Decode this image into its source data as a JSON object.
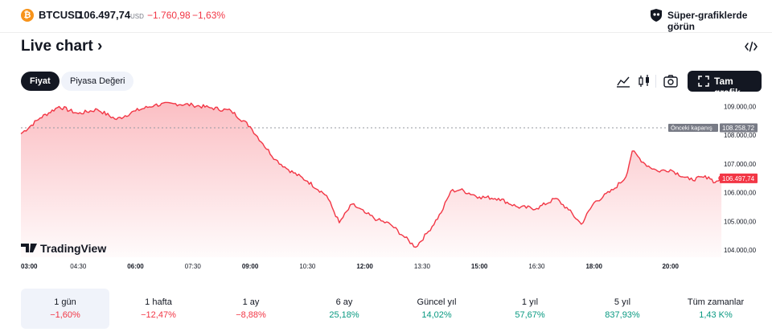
{
  "header": {
    "symbol": "BTCUSD",
    "price": "106.497,74",
    "currency": "USD",
    "change": "−1.760,98",
    "change_percent": "−1,63%",
    "super_link": "Süper-grafiklerde görün",
    "coin_glyph": "₿"
  },
  "page": {
    "title": "Live chart",
    "title_chevron": "›"
  },
  "tabs": [
    {
      "label": "Fiyat",
      "active": true
    },
    {
      "label": "Piyasa Değeri",
      "active": false
    }
  ],
  "toolbar": {
    "fullscreen_label": "Tam grafik",
    "icons": [
      "area-chart-icon",
      "candles-icon",
      "camera-icon",
      "fullscreen-icon"
    ]
  },
  "chart_data": {
    "type": "area",
    "series": [
      {
        "values": [
          {
            "t": "03:00",
            "v": 108050
          },
          {
            "t": "03:30",
            "v": 108600
          },
          {
            "t": "04:00",
            "v": 109000
          },
          {
            "t": "04:30",
            "v": 108750
          },
          {
            "t": "05:00",
            "v": 108900
          },
          {
            "t": "05:30",
            "v": 108550
          },
          {
            "t": "06:00",
            "v": 108850
          },
          {
            "t": "06:30",
            "v": 109050
          },
          {
            "t": "07:00",
            "v": 109100
          },
          {
            "t": "07:30",
            "v": 109050
          },
          {
            "t": "08:00",
            "v": 108950
          },
          {
            "t": "08:30",
            "v": 108850
          },
          {
            "t": "09:00",
            "v": 108300
          },
          {
            "t": "09:20",
            "v": 107700
          },
          {
            "t": "09:40",
            "v": 107150
          },
          {
            "t": "10:00",
            "v": 106800
          },
          {
            "t": "10:30",
            "v": 106400
          },
          {
            "t": "11:00",
            "v": 105900
          },
          {
            "t": "11:20",
            "v": 104950
          },
          {
            "t": "11:40",
            "v": 105600
          },
          {
            "t": "12:00",
            "v": 105300
          },
          {
            "t": "12:20",
            "v": 105050
          },
          {
            "t": "12:40",
            "v": 104900
          },
          {
            "t": "13:00",
            "v": 104500
          },
          {
            "t": "13:20",
            "v": 104100
          },
          {
            "t": "13:40",
            "v": 104650
          },
          {
            "t": "14:00",
            "v": 105300
          },
          {
            "t": "14:15",
            "v": 106050
          },
          {
            "t": "14:30",
            "v": 106100
          },
          {
            "t": "15:00",
            "v": 105850
          },
          {
            "t": "15:30",
            "v": 105800
          },
          {
            "t": "16:00",
            "v": 105500
          },
          {
            "t": "16:30",
            "v": 105450
          },
          {
            "t": "17:00",
            "v": 105800
          },
          {
            "t": "17:20",
            "v": 105400
          },
          {
            "t": "17:40",
            "v": 104900
          },
          {
            "t": "18:00",
            "v": 105650
          },
          {
            "t": "18:30",
            "v": 106100
          },
          {
            "t": "18:50",
            "v": 106550
          },
          {
            "t": "19:00",
            "v": 107450
          },
          {
            "t": "19:20",
            "v": 107000
          },
          {
            "t": "19:40",
            "v": 106750
          },
          {
            "t": "20:00",
            "v": 106800
          },
          {
            "t": "20:30",
            "v": 106450
          },
          {
            "t": "21:00",
            "v": 106550
          },
          {
            "t": "21:10",
            "v": 106350
          },
          {
            "t": "21:20",
            "v": 106500
          }
        ]
      }
    ],
    "x_ticks": [
      {
        "t": "03:00",
        "bold": true
      },
      {
        "t": "04:30",
        "bold": false
      },
      {
        "t": "06:00",
        "bold": true
      },
      {
        "t": "07:30",
        "bold": false
      },
      {
        "t": "09:00",
        "bold": true
      },
      {
        "t": "10:30",
        "bold": false
      },
      {
        "t": "12:00",
        "bold": true
      },
      {
        "t": "13:30",
        "bold": false
      },
      {
        "t": "15:00",
        "bold": true
      },
      {
        "t": "16:30",
        "bold": false
      },
      {
        "t": "18:00",
        "bold": true
      },
      {
        "t": "20:00",
        "bold": true
      }
    ],
    "y_ticks": [
      {
        "v": 109000,
        "label": "109.000,00"
      },
      {
        "v": 108000,
        "label": "108.000,00"
      },
      {
        "v": 107000,
        "label": "107.000,00"
      },
      {
        "v": 106000,
        "label": "106.000,00"
      },
      {
        "v": 105000,
        "label": "105.000,00"
      },
      {
        "v": 104000,
        "label": "104.000,00"
      }
    ],
    "ylim": [
      103750,
      109350
    ],
    "x_range": [
      "03:00",
      "21:30"
    ],
    "previous_close": {
      "v": 108258.72,
      "label": "Önceki kapanış",
      "value_label": "108.258,72"
    },
    "last": {
      "v": 106497.74,
      "label": "106.497,74"
    },
    "watermark": "TradingView",
    "colors": {
      "line": "#f23645",
      "fill": "#f23645",
      "prev_close": "#787b86"
    }
  },
  "ranges": [
    {
      "label": "1 gün",
      "value": "−1,60%",
      "trend": "neg",
      "active": true
    },
    {
      "label": "1 hafta",
      "value": "−12,47%",
      "trend": "neg",
      "active": false
    },
    {
      "label": "1 ay",
      "value": "−8,88%",
      "trend": "neg",
      "active": false
    },
    {
      "label": "6 ay",
      "value": "25,18%",
      "trend": "pos",
      "active": false
    },
    {
      "label": "Güncel yıl",
      "value": "14,02%",
      "trend": "pos",
      "active": false
    },
    {
      "label": "1 yıl",
      "value": "57,67%",
      "trend": "pos",
      "active": false
    },
    {
      "label": "5 yıl",
      "value": "837,93%",
      "trend": "pos",
      "active": false
    },
    {
      "label": "Tüm zamanlar",
      "value": "1,43 K%",
      "trend": "pos",
      "active": false
    }
  ]
}
